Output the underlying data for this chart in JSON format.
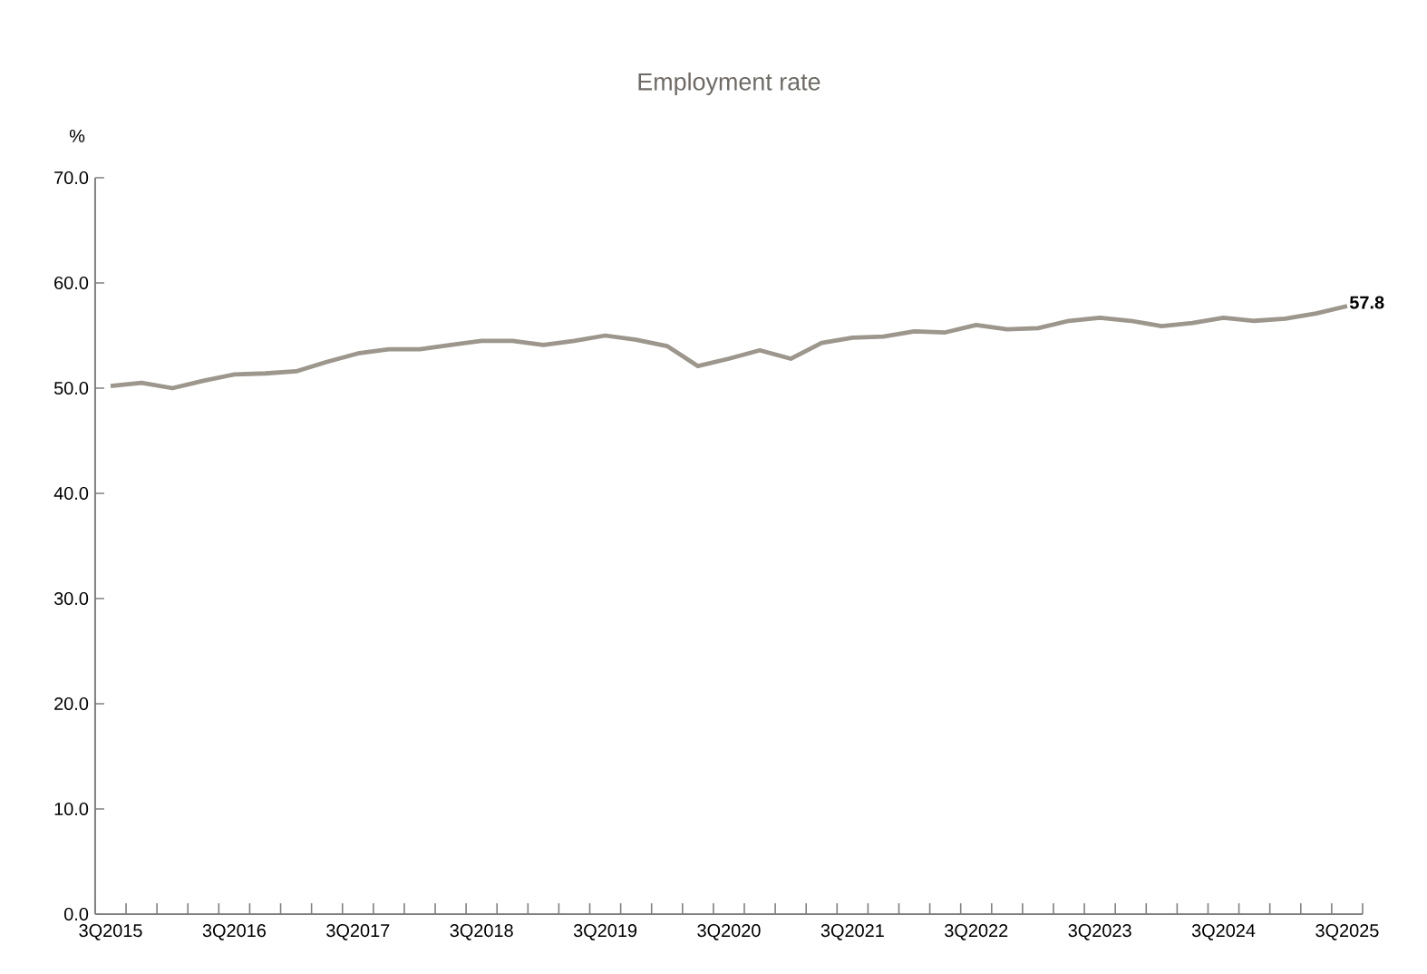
{
  "chart_data": {
    "type": "line",
    "title": "Employment rate",
    "ylabel": "%",
    "categories": [
      "3Q2015",
      null,
      null,
      null,
      "3Q2016",
      null,
      null,
      null,
      "3Q2017",
      null,
      null,
      null,
      "3Q2018",
      null,
      null,
      null,
      "3Q2019",
      null,
      null,
      null,
      "3Q2020",
      null,
      null,
      null,
      "3Q2021",
      null,
      null,
      null,
      "3Q2022",
      null,
      null,
      null,
      "3Q2023",
      null,
      null,
      null,
      "3Q2024",
      null,
      null,
      null,
      "3Q2025"
    ],
    "values": [
      50.2,
      50.5,
      50.0,
      50.7,
      51.3,
      51.4,
      51.6,
      52.5,
      53.3,
      53.7,
      53.7,
      54.1,
      54.5,
      54.5,
      54.1,
      54.5,
      55.0,
      54.6,
      54.0,
      52.1,
      52.8,
      53.6,
      52.8,
      54.3,
      54.8,
      54.9,
      55.4,
      55.3,
      56.0,
      55.6,
      55.7,
      56.4,
      56.7,
      56.4,
      55.9,
      56.2,
      56.7,
      56.4,
      56.6,
      57.1,
      57.8
    ],
    "value_labels": [
      null,
      null,
      null,
      null,
      null,
      null,
      null,
      null,
      null,
      null,
      null,
      null,
      null,
      null,
      null,
      null,
      null,
      null,
      null,
      null,
      null,
      null,
      null,
      null,
      null,
      null,
      null,
      null,
      null,
      null,
      null,
      null,
      null,
      null,
      null,
      null,
      null,
      null,
      null,
      null,
      "57.8"
    ],
    "color": "#9c968c",
    "ylim": [
      0,
      70
    ],
    "yticks": [
      {
        "value": 0,
        "label": "0.0"
      },
      {
        "value": 10,
        "label": "10.0"
      },
      {
        "value": 20,
        "label": "20.0"
      },
      {
        "value": 30,
        "label": "30.0"
      },
      {
        "value": 40,
        "label": "40.0"
      },
      {
        "value": 50,
        "label": "50.0"
      },
      {
        "value": 60,
        "label": "60.0"
      },
      {
        "value": 70,
        "label": "70.0"
      }
    ],
    "grid": false,
    "marker": "none",
    "line_style": "solid"
  }
}
